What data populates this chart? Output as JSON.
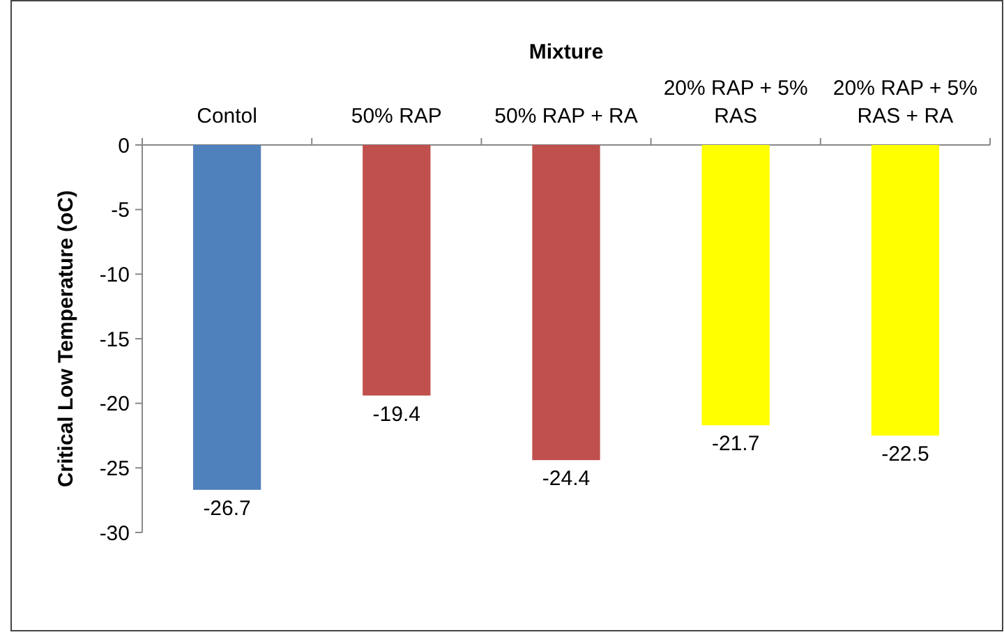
{
  "chart_data": {
    "type": "bar",
    "xlabel": "Mixture",
    "ylabel": "Critical Low Temperature (oC)",
    "categories": [
      "Contol",
      "50% RAP",
      "50% RAP + RA",
      "20% RAP + 5% RAS",
      "20% RAP + 5% RAS + RA"
    ],
    "values": [
      -26.7,
      -19.4,
      -24.4,
      -21.7,
      -22.5
    ],
    "colors": [
      "#4f81bd",
      "#c0504d",
      "#c0504d",
      "#ffff00",
      "#ffff00"
    ],
    "ylim": [
      -30,
      0
    ],
    "yticks": [
      -30,
      -25,
      -20,
      -15,
      -10,
      -5,
      0
    ],
    "data_labels": true,
    "grid": false
  }
}
